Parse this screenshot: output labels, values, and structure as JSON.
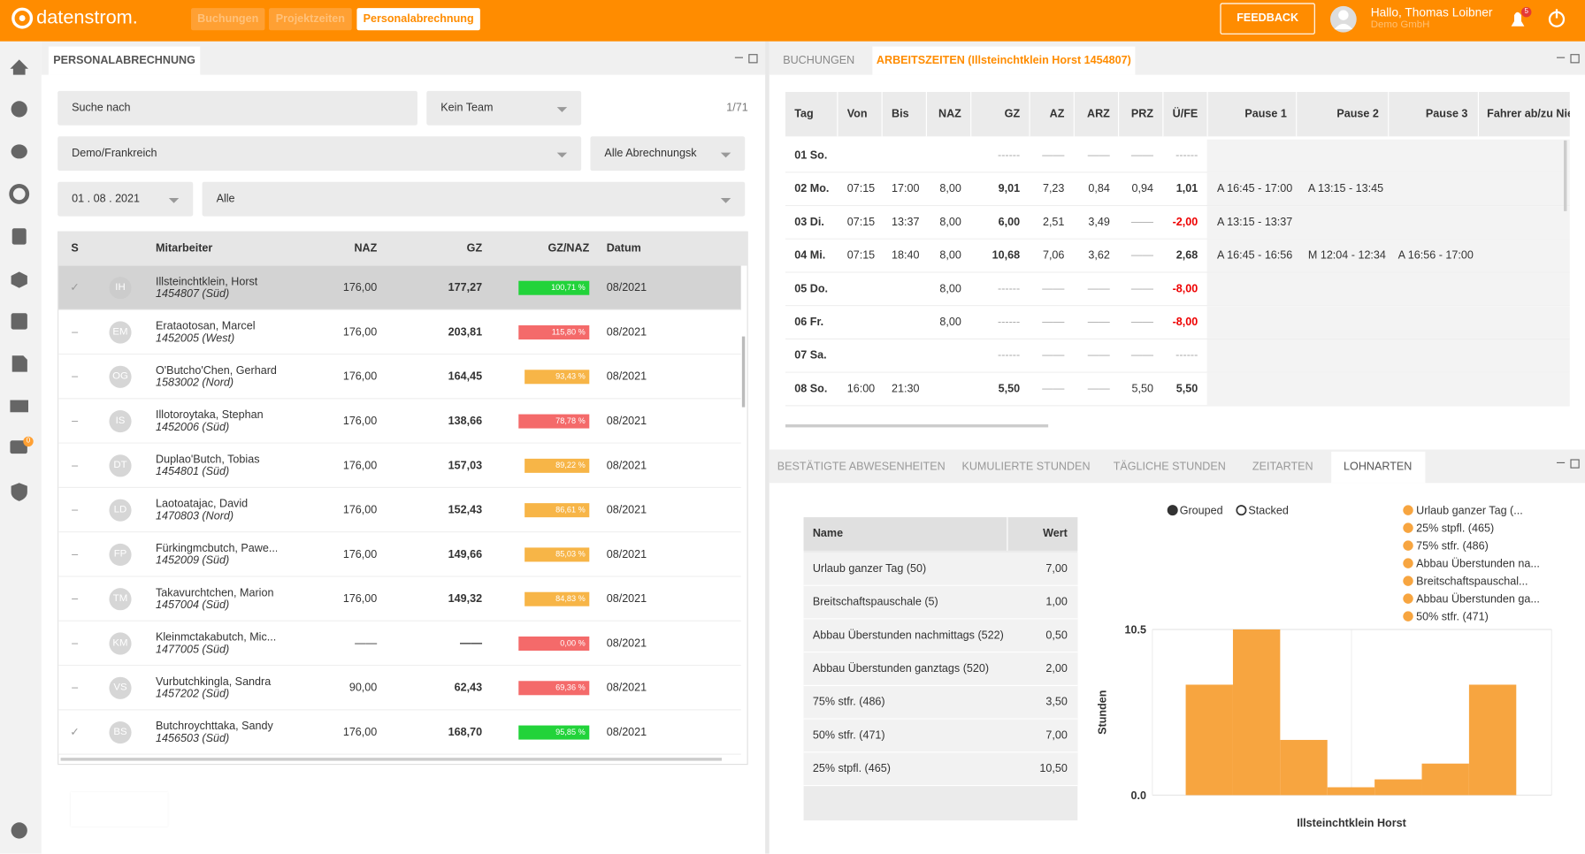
{
  "header": {
    "logo": "datenstrom.",
    "nav": [
      "Buchungen",
      "Projektzeiten",
      "Personalabrechnung"
    ],
    "feedback": "FEEDBACK",
    "greeting": "Hallo, Thomas Loibner",
    "company": "Demo GmbH",
    "badge": "5"
  },
  "sidebar": {
    "badge": "0"
  },
  "left": {
    "tab": "PERSONALABRECHNUNG",
    "search": "Suche nach",
    "team": "Kein Team",
    "count": "1/71",
    "location": "Demo/Frankreich",
    "billing": "Alle Abrechnungsk",
    "date": "01 . 08 . 2021",
    "filter": "Alle",
    "columns": [
      "S",
      "Mitarbeiter",
      "NAZ",
      "GZ",
      "GZ/NAZ",
      "Datum"
    ],
    "rows": [
      {
        "s": "✓",
        "initials": "IH",
        "name": "Illsteinchtklein, Horst",
        "id": "1454807 (Süd)",
        "naz": "176,00",
        "gz": "177,27",
        "ratio": "100,71 %",
        "color": "#22d33a",
        "date": "08/2021"
      },
      {
        "s": "–",
        "initials": "EM",
        "name": "Erataotosan, Marcel",
        "id": "1452005 (West)",
        "naz": "176,00",
        "gz": "203,81",
        "ratio": "115,80 %",
        "color": "#f46a6a",
        "date": "08/2021"
      },
      {
        "s": "–",
        "initials": "OG",
        "name": "O'Butcho'Chen, Gerhard",
        "id": "1583002 (Nord)",
        "naz": "176,00",
        "gz": "164,45",
        "ratio": "93,43 %",
        "color": "#f7b547",
        "date": "08/2021"
      },
      {
        "s": "–",
        "initials": "IS",
        "name": "Illotoroytaka, Stephan",
        "id": "1452006 (Süd)",
        "naz": "176,00",
        "gz": "138,66",
        "ratio": "78,78 %",
        "color": "#f46a6a",
        "date": "08/2021"
      },
      {
        "s": "–",
        "initials": "DT",
        "name": "Duplao'Butch, Tobias",
        "id": "1454801 (Süd)",
        "naz": "176,00",
        "gz": "157,03",
        "ratio": "89,22 %",
        "color": "#f7b547",
        "date": "08/2021"
      },
      {
        "s": "–",
        "initials": "LD",
        "name": "Laotoatajac, David",
        "id": "1470803 (Nord)",
        "naz": "176,00",
        "gz": "152,43",
        "ratio": "86,61 %",
        "color": "#f7b547",
        "date": "08/2021"
      },
      {
        "s": "–",
        "initials": "FP",
        "name": "Fürkingmcbutch, Pawe...",
        "id": "1452009 (Süd)",
        "naz": "176,00",
        "gz": "149,66",
        "ratio": "85,03 %",
        "color": "#f7b547",
        "date": "08/2021"
      },
      {
        "s": "–",
        "initials": "TM",
        "name": "Takavurchtchen, Marion",
        "id": "1457004 (Süd)",
        "naz": "176,00",
        "gz": "149,32",
        "ratio": "84,83 %",
        "color": "#f7b547",
        "date": "08/2021"
      },
      {
        "s": "–",
        "initials": "KM",
        "name": "Kleinmctakabutch, Mic...",
        "id": "1477005 (Süd)",
        "naz": "——",
        "gz": "——",
        "ratio": "0,00 %",
        "color": "#f46a6a",
        "date": "08/2021"
      },
      {
        "s": "–",
        "initials": "VS",
        "name": "Vurbutchkingla, Sandra",
        "id": "1457202 (Süd)",
        "naz": "90,00",
        "gz": "62,43",
        "ratio": "69,36 %",
        "color": "#f46a6a",
        "date": "08/2021"
      },
      {
        "s": "✓",
        "initials": "BS",
        "name": "Butchroychttaka, Sandy",
        "id": "1456503 (Süd)",
        "naz": "176,00",
        "gz": "168,70",
        "ratio": "95,85 %",
        "color": "#22d33a",
        "date": "08/2021"
      }
    ]
  },
  "right_top": {
    "tabs": [
      "BUCHUNGEN",
      "ARBEITSZEITEN (Illsteinchtklein Horst 1454807)"
    ],
    "columns": [
      "Tag",
      "Von",
      "Bis",
      "NAZ",
      "GZ",
      "AZ",
      "ARZ",
      "PRZ",
      "Ü/FE",
      "Pause 1",
      "Pause 2",
      "Pause 3",
      "Fahrer ab/zu Nie"
    ],
    "rows": [
      [
        "01 So.",
        null,
        null,
        null,
        "------",
        "——",
        "——",
        "——",
        "------",
        null,
        null,
        null
      ],
      [
        "02 Mo.",
        "07:15",
        "17:00",
        "8,00",
        "9,01",
        "7,23",
        "0,84",
        "0,94",
        "1,01",
        "A 16:45 - 17:00",
        "A 13:15 - 13:45",
        null
      ],
      [
        "03 Di.",
        "07:15",
        "13:37",
        "8,00",
        "6,00",
        "2,51",
        "3,49",
        "——",
        "-2,00",
        "A 13:15 - 13:37",
        null,
        null
      ],
      [
        "04 Mi.",
        "07:15",
        "18:40",
        "8,00",
        "10,68",
        "7,06",
        "3,62",
        "——",
        "2,68",
        "A 16:45 - 16:56",
        "M 12:04 - 12:34",
        "A 16:56 - 17:00"
      ],
      [
        "05 Do.",
        null,
        null,
        "8,00",
        "------",
        "——",
        "——",
        "——",
        "-8,00",
        null,
        null,
        null
      ],
      [
        "06 Fr.",
        null,
        null,
        "8,00",
        "------",
        "——",
        "——",
        "——",
        "-8,00",
        null,
        null,
        null
      ],
      [
        "07 Sa.",
        null,
        null,
        null,
        "------",
        "——",
        "——",
        "——",
        "------",
        null,
        null,
        null
      ],
      [
        "08 So.",
        "16:00",
        "21:30",
        null,
        "5,50",
        "——",
        "——",
        "5,50",
        "5,50",
        null,
        null,
        null
      ]
    ]
  },
  "bottom": {
    "tabs": [
      "BESTÄTIGTE ABWESENHEITEN",
      "KUMULIERTE STUNDEN",
      "TÄGLICHE STUNDEN",
      "ZEITARTEN",
      "LOHNARTEN"
    ],
    "table": {
      "columns": [
        "Name",
        "Wert"
      ],
      "rows": [
        [
          "Urlaub ganzer Tag (50)",
          "7,00"
        ],
        [
          "Breitschaftspauschale (5)",
          "1,00"
        ],
        [
          "Abbau Überstunden nachmittags (522)",
          "0,50"
        ],
        [
          "Abbau Überstunden ganztags (520)",
          "2,00"
        ],
        [
          "75% stfr. (486)",
          "3,50"
        ],
        [
          "50% stfr. (471)",
          "7,00"
        ],
        [
          "25% stpfl. (465)",
          "10,50"
        ]
      ]
    }
  },
  "chart_data": {
    "type": "bar",
    "modes": [
      "Grouped",
      "Stacked"
    ],
    "ylabel": "Stunden",
    "categories": [
      "Illsteinchtklein Horst"
    ],
    "ylim": [
      0,
      10.5
    ],
    "yticks": [
      {
        "value": 0,
        "label": "0.0"
      },
      10.5
    ],
    "series": [
      {
        "name": "Urlaub ganzer Tag (...",
        "color": "#f7a540",
        "values": [
          7
        ]
      },
      {
        "name": "25% stpfl. (465)",
        "color": "#f7a540",
        "values": [
          10.5
        ]
      },
      {
        "name": "75% stfr. (486)",
        "color": "#f7a540",
        "values": [
          3.5
        ]
      },
      {
        "name": "Abbau Überstunden na...",
        "color": "#f7a540",
        "values": [
          0.5
        ]
      },
      {
        "name": "Breitschaftspauschal...",
        "color": "#f7a540",
        "values": [
          1
        ]
      },
      {
        "name": "Abbau Überstunden ga...",
        "color": "#f7a540",
        "values": [
          2
        ]
      },
      {
        "name": "50% stfr. (471)",
        "color": "#f7a540",
        "values": [
          7
        ]
      }
    ]
  }
}
